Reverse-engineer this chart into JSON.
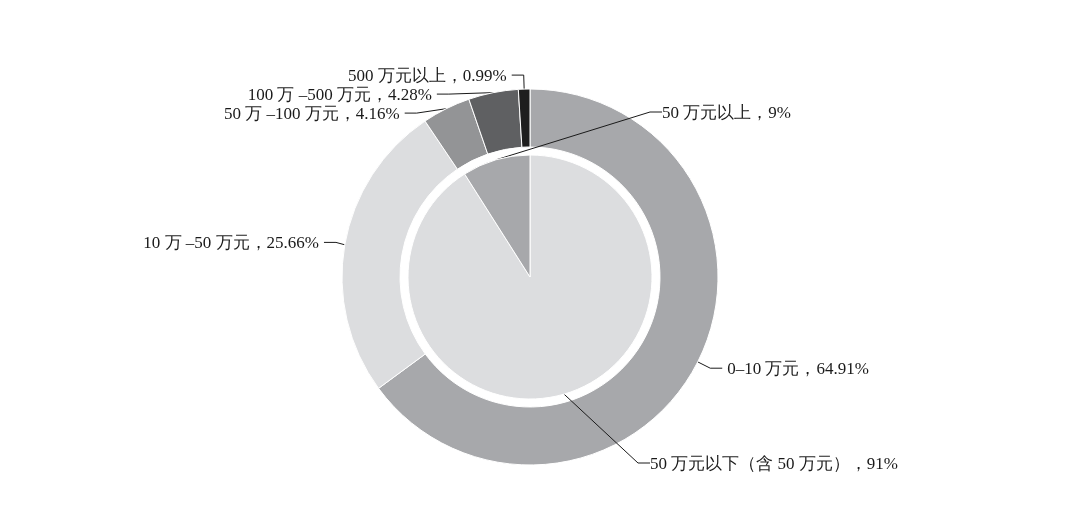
{
  "chart_data": [
    {
      "type": "donut",
      "categories": [
        "0–10 万元",
        "10 万 –50 万元",
        "50 万 –100 万元",
        "100 万 –500 万元",
        "500 万元以上"
      ],
      "values": [
        64.91,
        25.66,
        4.16,
        4.28,
        0.99
      ],
      "value_labels": [
        "64.91%",
        "25.66%",
        "4.16%",
        "4.28%",
        "0.99%"
      ],
      "colors": [
        "#a7a8ab",
        "#dcdddf",
        "#939496",
        "#5f6062",
        "#1e1e1e"
      ]
    },
    {
      "type": "pie",
      "categories": [
        "50 万元以下（含 50 万元）",
        "50 万元以上"
      ],
      "values": [
        91,
        9
      ],
      "value_labels": [
        "91%",
        "9%"
      ],
      "colors": [
        "#dcdddf",
        "#a7a8ab"
      ]
    }
  ]
}
